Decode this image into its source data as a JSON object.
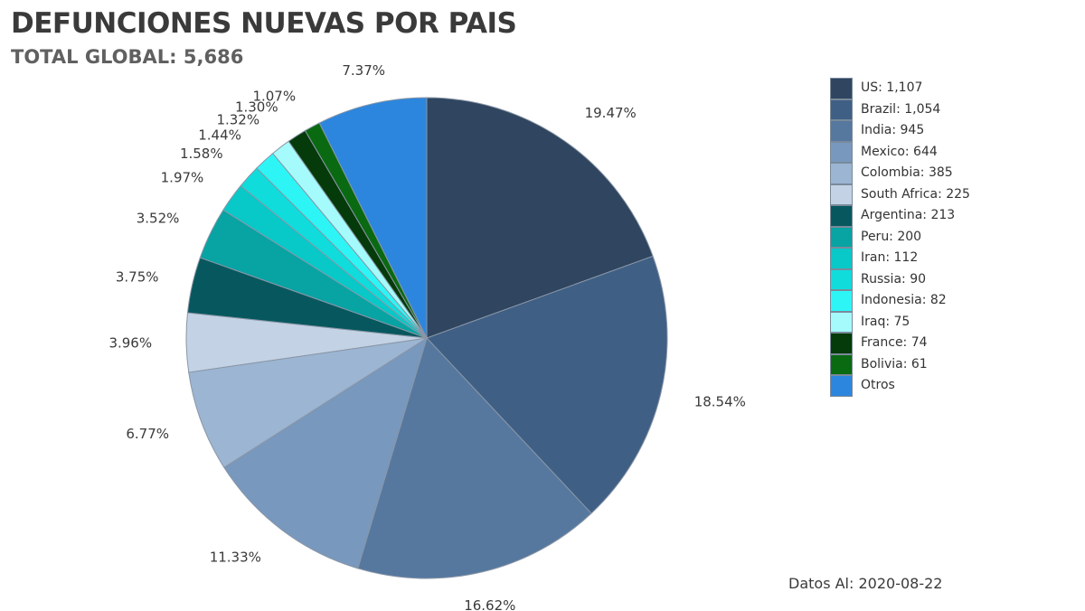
{
  "header": {
    "title": "DEFUNCIONES NUEVAS POR PAIS",
    "subtitle": "TOTAL GLOBAL: 5,686"
  },
  "footer": {
    "date_text": "Datos Al: 2020-08-22"
  },
  "chart_data": {
    "type": "pie",
    "title": "DEFUNCIONES NUEVAS POR PAIS",
    "subtitle": "TOTAL GLOBAL: 5,686",
    "start_angle": "12 o'clock",
    "direction": "clockwise",
    "legend_position": "right",
    "slices": [
      {
        "legend_label": "US:  1,107",
        "value": 1107,
        "pct_label": "19.47%",
        "color": "#2f4560"
      },
      {
        "legend_label": "Brazil:  1,054",
        "value": 1054,
        "pct_label": "18.54%",
        "color": "#3f5f85"
      },
      {
        "legend_label": "India:  945",
        "value": 945,
        "pct_label": "16.62%",
        "color": "#56789f"
      },
      {
        "legend_label": "Mexico:  644",
        "value": 644,
        "pct_label": "11.33%",
        "color": "#7898bd"
      },
      {
        "legend_label": "Colombia:  385",
        "value": 385,
        "pct_label": "6.77%",
        "color": "#9bb5d2"
      },
      {
        "legend_label": "South Africa:  225",
        "value": 225,
        "pct_label": "3.96%",
        "color": "#c3d3e5"
      },
      {
        "legend_label": "Argentina:  213",
        "value": 213,
        "pct_label": "3.75%",
        "color": "#07585e"
      },
      {
        "legend_label": "Peru:  200",
        "value": 200,
        "pct_label": "3.52%",
        "color": "#08a3a3"
      },
      {
        "legend_label": "Iran:  112",
        "value": 112,
        "pct_label": "1.97%",
        "color": "#08c8c8"
      },
      {
        "legend_label": "Russia:  90",
        "value": 90,
        "pct_label": "1.58%",
        "color": "#10dcdc"
      },
      {
        "legend_label": "Indonesia:  82",
        "value": 82,
        "pct_label": "1.44%",
        "color": "#2ef5f5"
      },
      {
        "legend_label": "Iraq:  75",
        "value": 75,
        "pct_label": "1.32%",
        "color": "#a5fbfb"
      },
      {
        "legend_label": "France:  74",
        "value": 74,
        "pct_label": "1.30%",
        "color": "#053a0a"
      },
      {
        "legend_label": "Bolivia:  61",
        "value": 61,
        "pct_label": "1.07%",
        "color": "#0a6a12"
      },
      {
        "legend_label": "Otros",
        "value": 419,
        "pct_label": "7.37%",
        "color": "#2d86dd"
      }
    ]
  }
}
